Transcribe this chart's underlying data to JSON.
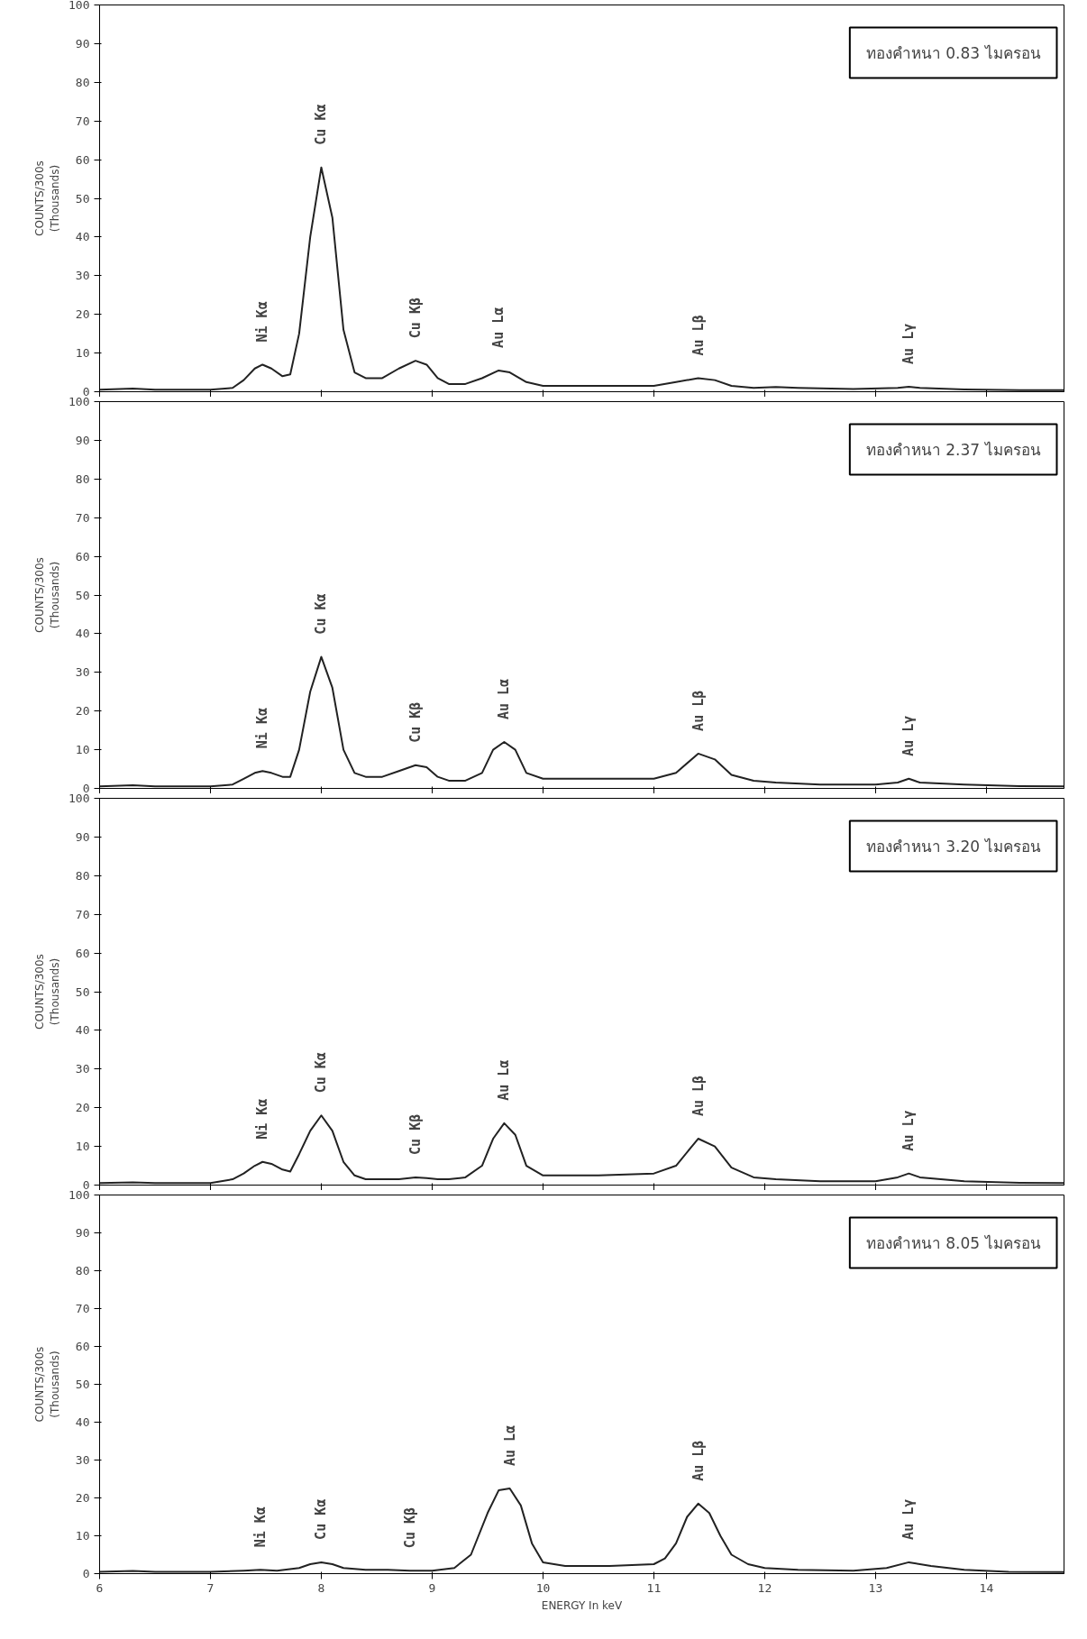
{
  "chart_data": [
    {
      "type": "line",
      "color": "#222222",
      "ylabel": "COUNTS/300s\n(Thousands)",
      "xlim": [
        6,
        14.7
      ],
      "xticks": [
        6,
        7,
        8,
        9,
        10,
        11,
        12,
        13,
        14
      ],
      "ylim": [
        0,
        100
      ],
      "yticks": [
        0,
        10,
        20,
        30,
        40,
        50,
        60,
        70,
        80,
        90,
        100
      ],
      "tick_labels": "y",
      "x": [
        6.0,
        6.3,
        6.5,
        7.0,
        7.2,
        7.3,
        7.4,
        7.47,
        7.55,
        7.65,
        7.72,
        7.8,
        7.9,
        8.0,
        8.1,
        8.2,
        8.3,
        8.4,
        8.55,
        8.7,
        8.85,
        8.95,
        9.05,
        9.15,
        9.3,
        9.45,
        9.6,
        9.7,
        9.85,
        10.0,
        10.5,
        11.0,
        11.2,
        11.4,
        11.55,
        11.7,
        11.9,
        12.1,
        12.3,
        12.8,
        13.2,
        13.3,
        13.4,
        13.8,
        14.3,
        14.7
      ],
      "values": [
        0.5,
        0.8,
        0.5,
        0.5,
        1,
        3,
        6,
        7,
        6,
        4,
        4.5,
        15,
        40,
        58,
        45,
        16,
        5,
        3.5,
        3.5,
        6,
        8,
        7,
        3.5,
        2,
        2,
        3.5,
        5.5,
        5,
        2.5,
        1.5,
        1.5,
        1.5,
        2.5,
        3.5,
        3,
        1.5,
        1,
        1.2,
        1,
        0.7,
        1,
        1.3,
        1,
        0.6,
        0.4,
        0.4
      ],
      "annotations": [
        "ทองคำหนา 0.83 ไมครอน",
        {
          "text": "Ni Kα",
          "x": 7.47,
          "y": 7
        },
        {
          "text": "Cu Kα",
          "x": 8.0,
          "y": 58
        },
        {
          "text": "Cu Kβ",
          "x": 8.85,
          "y": 8
        },
        {
          "text": "Au Lα",
          "x": 9.6,
          "y": 5.5
        },
        {
          "text": "Au Lβ",
          "x": 11.4,
          "y": 3.5
        },
        {
          "text": "Au Lγ",
          "x": 13.3,
          "y": 1.3
        }
      ]
    },
    {
      "type": "line",
      "color": "#222222",
      "ylabel": "COUNTS/300s\n(Thousands)",
      "xlim": [
        6,
        14.7
      ],
      "xticks": [
        6,
        7,
        8,
        9,
        10,
        11,
        12,
        13,
        14
      ],
      "ylim": [
        0,
        100
      ],
      "yticks": [
        0,
        10,
        20,
        30,
        40,
        50,
        60,
        70,
        80,
        90,
        100
      ],
      "tick_labels": "y",
      "x": [
        6.0,
        6.3,
        6.5,
        7.0,
        7.2,
        7.3,
        7.4,
        7.47,
        7.55,
        7.65,
        7.72,
        7.8,
        7.9,
        8.0,
        8.1,
        8.2,
        8.3,
        8.4,
        8.55,
        8.7,
        8.85,
        8.95,
        9.05,
        9.15,
        9.3,
        9.45,
        9.55,
        9.65,
        9.75,
        9.85,
        10.0,
        10.5,
        11.0,
        11.2,
        11.4,
        11.55,
        11.7,
        11.9,
        12.1,
        12.5,
        13.0,
        13.2,
        13.3,
        13.4,
        13.8,
        14.3,
        14.7
      ],
      "values": [
        0.5,
        0.8,
        0.5,
        0.5,
        1,
        2.5,
        4,
        4.5,
        4,
        3,
        3,
        10,
        25,
        34,
        26,
        10,
        4,
        3,
        3,
        4.5,
        6,
        5.5,
        3,
        2,
        2,
        4,
        10,
        12,
        10,
        4,
        2.5,
        2.5,
        2.5,
        4,
        9,
        7.5,
        3.5,
        2,
        1.5,
        1,
        1,
        1.5,
        2.5,
        1.5,
        1,
        0.6,
        0.5
      ],
      "annotations": [
        "ทองคำหนา 2.37 ไมครอน",
        {
          "text": "Ni Kα",
          "x": 7.47,
          "y": 4.5
        },
        {
          "text": "Cu Kα",
          "x": 8.0,
          "y": 34
        },
        {
          "text": "Cu Kβ",
          "x": 8.85,
          "y": 6
        },
        {
          "text": "Au Lα",
          "x": 9.65,
          "y": 12
        },
        {
          "text": "Au Lβ",
          "x": 11.4,
          "y": 9
        },
        {
          "text": "Au Lγ",
          "x": 13.3,
          "y": 2.5
        }
      ]
    },
    {
      "type": "line",
      "color": "#222222",
      "ylabel": "COUNTS/300s\n(Thousands)",
      "xlim": [
        6,
        14.7
      ],
      "xticks": [
        6,
        7,
        8,
        9,
        10,
        11,
        12,
        13,
        14
      ],
      "ylim": [
        0,
        100
      ],
      "yticks": [
        0,
        10,
        20,
        30,
        40,
        50,
        60,
        70,
        80,
        90,
        100
      ],
      "tick_labels": "y",
      "x": [
        6.0,
        6.3,
        6.5,
        7.0,
        7.2,
        7.3,
        7.4,
        7.47,
        7.55,
        7.65,
        7.72,
        7.8,
        7.9,
        8.0,
        8.1,
        8.2,
        8.3,
        8.4,
        8.55,
        8.7,
        8.85,
        8.95,
        9.05,
        9.15,
        9.3,
        9.45,
        9.55,
        9.65,
        9.75,
        9.85,
        10.0,
        10.5,
        11.0,
        11.2,
        11.4,
        11.55,
        11.7,
        11.9,
        12.1,
        12.5,
        13.0,
        13.2,
        13.3,
        13.4,
        13.8,
        14.3,
        14.7
      ],
      "values": [
        0.5,
        0.7,
        0.5,
        0.5,
        1.5,
        3,
        5,
        6,
        5.5,
        4,
        3.5,
        8,
        14,
        18,
        14,
        6,
        2.5,
        1.5,
        1.5,
        1.5,
        2,
        1.8,
        1.5,
        1.5,
        2,
        5,
        12,
        16,
        13,
        5,
        2.5,
        2.5,
        3,
        5,
        12,
        10,
        4.5,
        2,
        1.5,
        1,
        1,
        2,
        3,
        2,
        1,
        0.6,
        0.5
      ],
      "annotations": [
        "ทองคำหนา 3.20 ไมครอน",
        {
          "text": "Ni Kα",
          "x": 7.47,
          "y": 6
        },
        {
          "text": "Cu Kα",
          "x": 8.0,
          "y": 18
        },
        {
          "text": "Cu Kβ",
          "x": 8.85,
          "y": 2
        },
        {
          "text": "Au Lα",
          "x": 9.65,
          "y": 16
        },
        {
          "text": "Au Lβ",
          "x": 11.4,
          "y": 12
        },
        {
          "text": "Au Lγ",
          "x": 13.3,
          "y": 3
        }
      ]
    },
    {
      "type": "line",
      "color": "#222222",
      "ylabel": "COUNTS/300s\n(Thousands)",
      "xlabel": "ENERGY In keV",
      "xlim": [
        6,
        14.7
      ],
      "xticks": [
        6,
        7,
        8,
        9,
        10,
        11,
        12,
        13,
        14
      ],
      "ylim": [
        0,
        100
      ],
      "yticks": [
        0,
        10,
        20,
        30,
        40,
        50,
        60,
        70,
        80,
        90,
        100
      ],
      "x": [
        6.0,
        6.3,
        6.5,
        7.0,
        7.3,
        7.45,
        7.6,
        7.8,
        7.9,
        8.0,
        8.1,
        8.2,
        8.4,
        8.6,
        8.8,
        9.0,
        9.2,
        9.35,
        9.5,
        9.6,
        9.7,
        9.8,
        9.9,
        10.0,
        10.2,
        10.6,
        11.0,
        11.1,
        11.2,
        11.3,
        11.4,
        11.5,
        11.6,
        11.7,
        11.85,
        12.0,
        12.3,
        12.8,
        13.1,
        13.3,
        13.5,
        13.8,
        14.2,
        14.7
      ],
      "values": [
        0.5,
        0.7,
        0.5,
        0.5,
        0.8,
        1,
        0.8,
        1.5,
        2.5,
        3,
        2.5,
        1.5,
        1,
        1,
        0.8,
        0.8,
        1.5,
        5,
        16,
        22,
        22.5,
        18,
        8,
        3,
        2,
        2,
        2.5,
        4,
        8,
        15,
        18.5,
        16,
        10,
        5,
        2.5,
        1.5,
        1,
        0.8,
        1.5,
        3,
        2,
        1,
        0.5,
        0.4
      ],
      "annotations": [
        "ทองคำหนา 8.05 ไมครอน",
        {
          "text": "Ni Kα",
          "x": 7.45,
          "y": 1
        },
        {
          "text": "Cu Kα",
          "x": 8.0,
          "y": 3
        },
        {
          "text": "Cu Kβ",
          "x": 8.8,
          "y": 0.8
        },
        {
          "text": "Au Lα",
          "x": 9.7,
          "y": 22.5
        },
        {
          "text": "Au Lβ",
          "x": 11.4,
          "y": 18.5
        },
        {
          "text": "Au Lγ",
          "x": 13.3,
          "y": 3
        }
      ]
    }
  ]
}
